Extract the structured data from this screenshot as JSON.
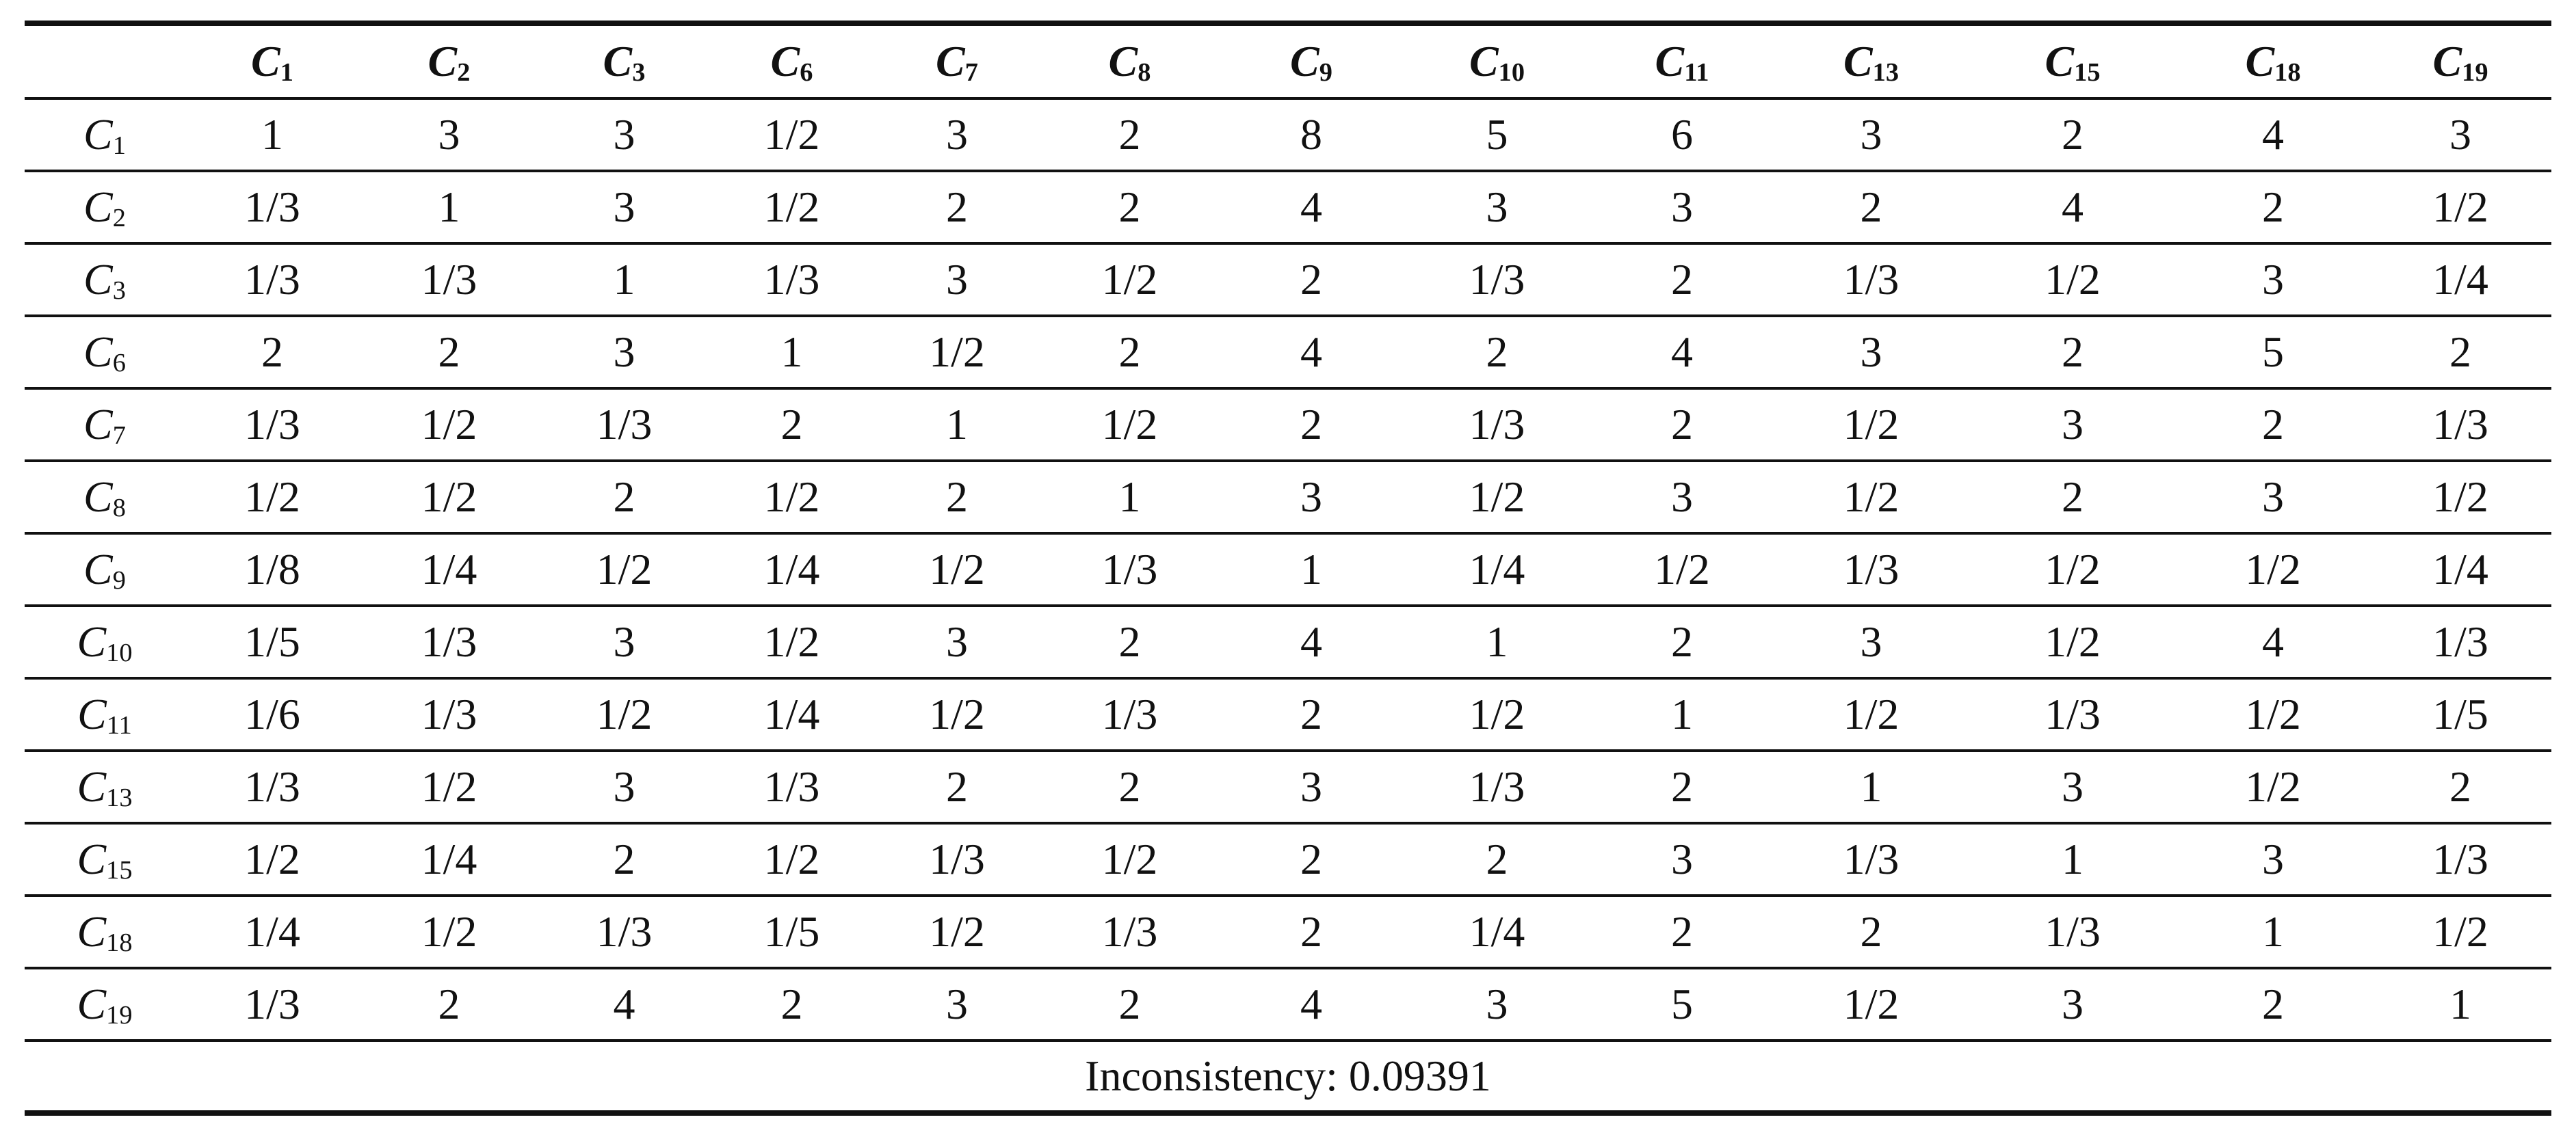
{
  "table": {
    "header": [
      {
        "letter": "C",
        "sub": "1"
      },
      {
        "letter": "C",
        "sub": "2"
      },
      {
        "letter": "C",
        "sub": "3"
      },
      {
        "letter": "C",
        "sub": "6"
      },
      {
        "letter": "C",
        "sub": "7"
      },
      {
        "letter": "C",
        "sub": "8"
      },
      {
        "letter": "C",
        "sub": "9"
      },
      {
        "letter": "C",
        "sub": "10"
      },
      {
        "letter": "C",
        "sub": "11"
      },
      {
        "letter": "C",
        "sub": "13"
      },
      {
        "letter": "C",
        "sub": "15"
      },
      {
        "letter": "C",
        "sub": "18"
      },
      {
        "letter": "C",
        "sub": "19"
      }
    ],
    "rows": [
      {
        "label": {
          "letter": "C",
          "sub": "1"
        },
        "cells": [
          "1",
          "3",
          "3",
          "1/2",
          "3",
          "2",
          "8",
          "5",
          "6",
          "3",
          "2",
          "4",
          "3"
        ]
      },
      {
        "label": {
          "letter": "C",
          "sub": "2"
        },
        "cells": [
          "1/3",
          "1",
          "3",
          "1/2",
          "2",
          "2",
          "4",
          "3",
          "3",
          "2",
          "4",
          "2",
          "1/2"
        ]
      },
      {
        "label": {
          "letter": "C",
          "sub": "3"
        },
        "cells": [
          "1/3",
          "1/3",
          "1",
          "1/3",
          "3",
          "1/2",
          "2",
          "1/3",
          "2",
          "1/3",
          "1/2",
          "3",
          "1/4"
        ]
      },
      {
        "label": {
          "letter": "C",
          "sub": "6"
        },
        "cells": [
          "2",
          "2",
          "3",
          "1",
          "1/2",
          "2",
          "4",
          "2",
          "4",
          "3",
          "2",
          "5",
          "2"
        ]
      },
      {
        "label": {
          "letter": "C",
          "sub": "7"
        },
        "cells": [
          "1/3",
          "1/2",
          "1/3",
          "2",
          "1",
          "1/2",
          "2",
          "1/3",
          "2",
          "1/2",
          "3",
          "2",
          "1/3"
        ]
      },
      {
        "label": {
          "letter": "C",
          "sub": "8"
        },
        "cells": [
          "1/2",
          "1/2",
          "2",
          "1/2",
          "2",
          "1",
          "3",
          "1/2",
          "3",
          "1/2",
          "2",
          "3",
          "1/2"
        ]
      },
      {
        "label": {
          "letter": "C",
          "sub": "9"
        },
        "cells": [
          "1/8",
          "1/4",
          "1/2",
          "1/4",
          "1/2",
          "1/3",
          "1",
          "1/4",
          "1/2",
          "1/3",
          "1/2",
          "1/2",
          "1/4"
        ]
      },
      {
        "label": {
          "letter": "C",
          "sub": "10"
        },
        "cells": [
          "1/5",
          "1/3",
          "3",
          "1/2",
          "3",
          "2",
          "4",
          "1",
          "2",
          "3",
          "1/2",
          "4",
          "1/3"
        ]
      },
      {
        "label": {
          "letter": "C",
          "sub": "11"
        },
        "cells": [
          "1/6",
          "1/3",
          "1/2",
          "1/4",
          "1/2",
          "1/3",
          "2",
          "1/2",
          "1",
          "1/2",
          "1/3",
          "1/2",
          "1/5"
        ]
      },
      {
        "label": {
          "letter": "C",
          "sub": "13"
        },
        "cells": [
          "1/3",
          "1/2",
          "3",
          "1/3",
          "2",
          "2",
          "3",
          "1/3",
          "2",
          "1",
          "3",
          "1/2",
          "2"
        ]
      },
      {
        "label": {
          "letter": "C",
          "sub": "15"
        },
        "cells": [
          "1/2",
          "1/4",
          "2",
          "1/2",
          "1/3",
          "1/2",
          "2",
          "2",
          "3",
          "1/3",
          "1",
          "3",
          "1/3"
        ]
      },
      {
        "label": {
          "letter": "C",
          "sub": "18"
        },
        "cells": [
          "1/4",
          "1/2",
          "1/3",
          "1/5",
          "1/2",
          "1/3",
          "2",
          "1/4",
          "2",
          "2",
          "1/3",
          "1",
          "1/2"
        ]
      },
      {
        "label": {
          "letter": "C",
          "sub": "19"
        },
        "cells": [
          "1/3",
          "2",
          "4",
          "2",
          "3",
          "2",
          "4",
          "3",
          "5",
          "1/2",
          "3",
          "2",
          "1"
        ]
      }
    ],
    "footer": "Inconsistency: 0.09391"
  }
}
